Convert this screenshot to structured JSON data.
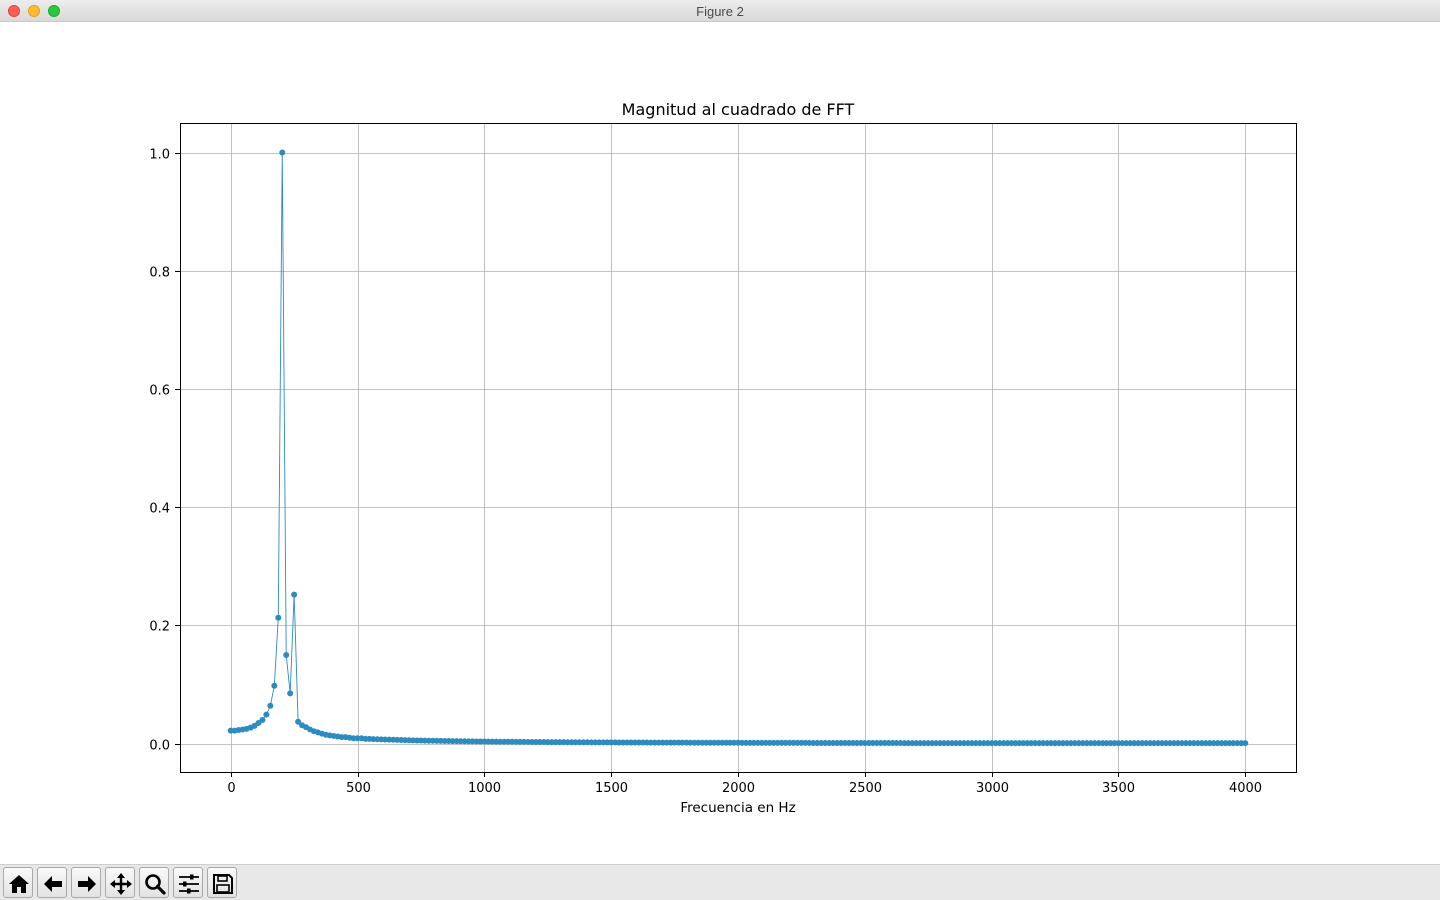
{
  "window": {
    "title": "Figure 2"
  },
  "toolbar": {
    "buttons": [
      "home-icon",
      "back-arrow-icon",
      "forward-arrow-icon",
      "pan-move-icon",
      "zoom-magnifier-icon",
      "configure-subplots-icon",
      "save-floppy-icon"
    ]
  },
  "chart_data": {
    "type": "line",
    "title": "Magnitud al cuadrado de FFT",
    "xlabel": "Frecuencia en Hz",
    "ylabel": "",
    "xlim": [
      -200,
      4200
    ],
    "ylim": [
      -0.048,
      1.05
    ],
    "xticks": [
      0,
      500,
      1000,
      1500,
      2000,
      2500,
      3000,
      3500,
      4000
    ],
    "xtick_labels": [
      "0",
      "500",
      "1000",
      "1500",
      "2000",
      "2500",
      "3000",
      "3500",
      "4000"
    ],
    "yticks": [
      0.0,
      0.2,
      0.4,
      0.6,
      0.8,
      1.0
    ],
    "ytick_labels": [
      "0.0",
      "0.2",
      "0.4",
      "0.6",
      "0.8",
      "1.0"
    ],
    "grid": true,
    "marker": "o",
    "color": "#2e8bc0",
    "x_spacing": 15.625,
    "x_end": 4000,
    "series": [
      {
        "values": [
          0.022,
          0.022,
          0.023,
          0.024,
          0.025,
          0.027,
          0.03,
          0.035,
          0.04,
          0.049,
          0.064,
          0.098,
          0.213,
          1.0,
          0.15,
          0.085,
          0.252,
          0.037,
          0.031,
          0.028,
          0.024,
          0.021,
          0.019,
          0.017,
          0.015,
          0.014,
          0.013,
          0.012,
          0.011,
          0.011,
          0.01,
          0.009,
          0.009,
          0.009,
          0.008,
          0.008
        ]
      }
    ]
  }
}
